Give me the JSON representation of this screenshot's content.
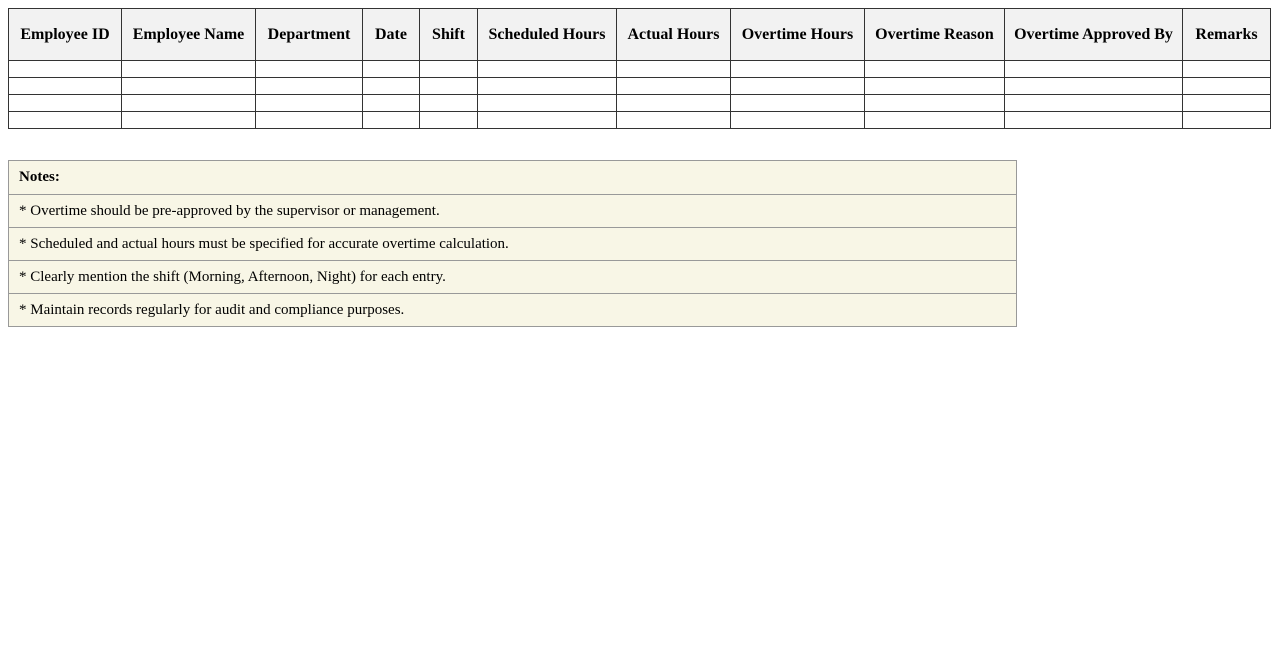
{
  "table": {
    "headers": [
      "Employee ID",
      "Employee Name",
      "Department",
      "Date",
      "Shift",
      "Scheduled Hours",
      "Actual Hours",
      "Overtime Hours",
      "Overtime Reason",
      "Overtime Approved By",
      "Remarks"
    ],
    "rows": [
      [
        "",
        "",
        "",
        "",
        "",
        "",
        "",
        "",
        "",
        "",
        ""
      ],
      [
        "",
        "",
        "",
        "",
        "",
        "",
        "",
        "",
        "",
        "",
        ""
      ],
      [
        "",
        "",
        "",
        "",
        "",
        "",
        "",
        "",
        "",
        "",
        ""
      ],
      [
        "",
        "",
        "",
        "",
        "",
        "",
        "",
        "",
        "",
        "",
        ""
      ]
    ]
  },
  "notes": {
    "title": "Notes:",
    "items": [
      "* Overtime should be pre-approved by the supervisor or management.",
      "* Scheduled and actual hours must be specified for accurate overtime calculation.",
      "* Clearly mention the shift (Morning, Afternoon, Night) for each entry.",
      "* Maintain records regularly for audit and compliance purposes."
    ]
  }
}
